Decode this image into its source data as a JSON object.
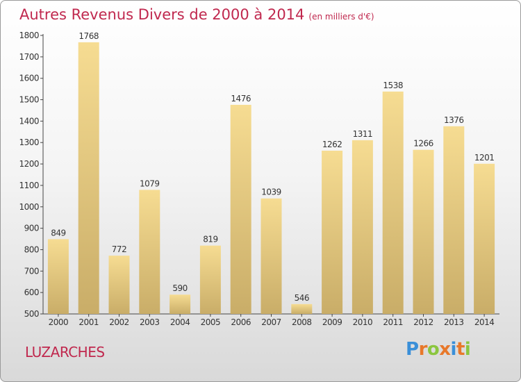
{
  "header": {
    "title": "Autres Revenus Divers de 2000 à 2014",
    "subtitle": "(en milliers d'€)"
  },
  "footer": {
    "city": "LUZARCHES",
    "logo_letters": [
      "P",
      "r",
      "o",
      "x",
      "i",
      "t",
      "i"
    ],
    "logo_colors": [
      "#3a8fd8",
      "#e8782a",
      "#8bc63f",
      "#e8782a",
      "#3a8fd8",
      "#e8782a",
      "#8bc63f"
    ]
  },
  "chart_data": {
    "type": "bar",
    "categories": [
      "2000",
      "2001",
      "2002",
      "2003",
      "2004",
      "2005",
      "2006",
      "2007",
      "2008",
      "2009",
      "2010",
      "2011",
      "2012",
      "2013",
      "2014"
    ],
    "values": [
      849,
      1768,
      772,
      1079,
      590,
      819,
      1476,
      1039,
      546,
      1262,
      1311,
      1538,
      1266,
      1376,
      1201
    ],
    "title": "Autres Revenus Divers de 2000 à 2014",
    "subtitle": "(en milliers d'€)",
    "xlabel": "",
    "ylabel": "",
    "ylim": [
      500,
      1800
    ],
    "yticks": [
      500,
      600,
      700,
      800,
      900,
      1000,
      1100,
      1200,
      1300,
      1400,
      1500,
      1600,
      1700,
      1800
    ],
    "grid": false,
    "bar_color_top": "#f6dc92",
    "bar_color_bottom": "#c9ad68"
  }
}
